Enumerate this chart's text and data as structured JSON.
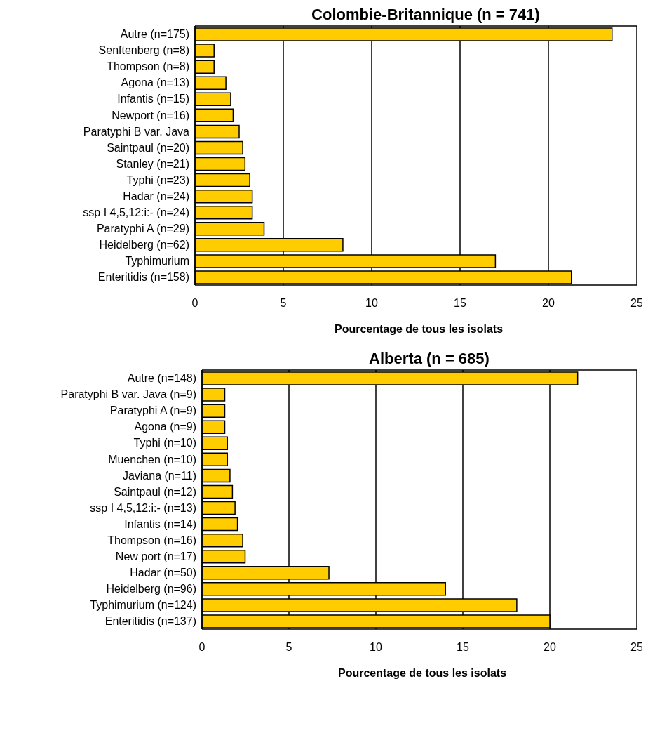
{
  "chart_data": [
    {
      "type": "bar",
      "orientation": "horizontal",
      "title": "Colombie-Britannique (n = 741)",
      "xlabel": "Pourcentage de tous les isolats",
      "categories": [
        "Autre (n=175)",
        "Senftenberg (n=8)",
        "Thompson (n=8)",
        "Agona (n=13)",
        "Infantis (n=15)",
        "Newport (n=16)",
        "Paratyphi B var. Java",
        "Saintpaul (n=20)",
        "Stanley (n=21)",
        "Typhi (n=23)",
        "Hadar (n=24)",
        "ssp I 4,5,12:i:- (n=24)",
        "Paratyphi A (n=29)",
        "Heidelberg (n=62)",
        "Typhimurium",
        "Enteritidis (n=158)"
      ],
      "values": [
        23.6,
        1.08,
        1.08,
        1.75,
        2.02,
        2.16,
        2.5,
        2.7,
        2.83,
        3.1,
        3.24,
        3.24,
        3.91,
        8.37,
        17.0,
        21.3
      ],
      "color": "#ffcc00",
      "xlim": [
        0,
        25
      ],
      "xticks": [
        0,
        5,
        10,
        15,
        20,
        25
      ],
      "grid": "x",
      "legend": false
    },
    {
      "type": "bar",
      "orientation": "horizontal",
      "title": "Alberta (n = 685)",
      "xlabel": "Pourcentage de tous les isolats",
      "categories": [
        "Autre (n=148)",
        "Paratyphi B var. Java (n=9)",
        "Paratyphi A (n=9)",
        "Agona (n=9)",
        "Typhi (n=10)",
        "Muenchen (n=10)",
        "Javiana (n=11)",
        "Saintpaul (n=12)",
        "ssp I 4,5,12:i:- (n=13)",
        "Infantis (n=14)",
        "Thompson (n=16)",
        "New port (n=17)",
        "Hadar (n=50)",
        "Heidelberg (n=96)",
        "Typhimurium (n=124)",
        "Enteritidis (n=137)"
      ],
      "values": [
        21.6,
        1.31,
        1.31,
        1.31,
        1.46,
        1.46,
        1.61,
        1.75,
        1.9,
        2.04,
        2.34,
        2.48,
        7.3,
        14.0,
        18.1,
        20.0
      ],
      "color": "#ffcc00",
      "xlim": [
        0,
        25
      ],
      "xticks": [
        0,
        5,
        10,
        15,
        20,
        25
      ],
      "grid": "x",
      "legend": false
    }
  ]
}
